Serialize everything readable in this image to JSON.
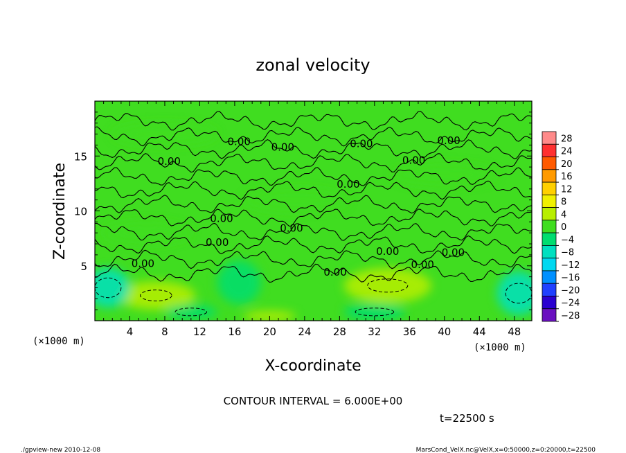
{
  "chart_data": {
    "type": "heatmap",
    "title": "zonal velocity",
    "xlabel": "X-coordinate",
    "ylabel": "Z-coordinate",
    "x_unit_label": "(×1000 m)",
    "y_unit_label": "(×1000 m)",
    "xlim": [
      0,
      50
    ],
    "ylim": [
      0,
      20
    ],
    "x_ticks": [
      4,
      8,
      12,
      16,
      20,
      24,
      28,
      32,
      36,
      40,
      44,
      48
    ],
    "y_ticks": [
      5,
      10,
      15
    ],
    "colorbar": {
      "levels": [
        28,
        24,
        20,
        16,
        12,
        8,
        4,
        0,
        -4,
        -8,
        -12,
        -16,
        -20,
        -24,
        -28
      ],
      "labels": [
        "28",
        "24",
        "20",
        "16",
        "12",
        "8",
        "4",
        "0",
        "−4",
        "−8",
        "−12",
        "−16",
        "−20",
        "−24",
        "−28"
      ],
      "colors": [
        "#ff8a8a",
        "#ff3030",
        "#ff5a00",
        "#ff9a00",
        "#ffd000",
        "#f0f000",
        "#b8ee00",
        "#40dd20",
        "#00dd70",
        "#00e0c0",
        "#00d8f0",
        "#0090ff",
        "#2040ff",
        "#2a00d0",
        "#6a10c0"
      ]
    },
    "contour_interval_text": "CONTOUR INTERVAL = 6.000E+00",
    "contour_labels": [
      {
        "text": "0.00",
        "x": 16.5,
        "z": 16.0
      },
      {
        "text": "0.00",
        "x": 21.5,
        "z": 15.5
      },
      {
        "text": "0.00",
        "x": 8.5,
        "z": 14.2
      },
      {
        "text": "0.00",
        "x": 30.5,
        "z": 15.8
      },
      {
        "text": "0.00",
        "x": 40.5,
        "z": 16.1
      },
      {
        "text": "0.00",
        "x": 36.5,
        "z": 14.3
      },
      {
        "text": "0.00",
        "x": 29.0,
        "z": 12.1
      },
      {
        "text": "0.00",
        "x": 14.5,
        "z": 9.0
      },
      {
        "text": "0.00",
        "x": 22.5,
        "z": 8.1
      },
      {
        "text": "0.00",
        "x": 14.0,
        "z": 6.8
      },
      {
        "text": "0.00",
        "x": 5.5,
        "z": 4.9
      },
      {
        "text": "0.00",
        "x": 33.5,
        "z": 6.0
      },
      {
        "text": "0.00",
        "x": 41.0,
        "z": 5.9
      },
      {
        "text": "0.00",
        "x": 37.5,
        "z": 4.8
      },
      {
        "text": "0.00",
        "x": 27.5,
        "z": 4.1
      }
    ],
    "field_blobs": [
      {
        "x": 7.0,
        "z": 2.3,
        "rx": 4.5,
        "rz": 1.3,
        "value": 5
      },
      {
        "x": 33.5,
        "z": 3.2,
        "rx": 5.0,
        "rz": 1.6,
        "value": 5
      },
      {
        "x": 1.5,
        "z": 3.0,
        "rx": 2.5,
        "rz": 1.8,
        "value": -5
      },
      {
        "x": 16.5,
        "z": 3.5,
        "rx": 2.5,
        "rz": 2.0,
        "value": -3
      },
      {
        "x": 48.5,
        "z": 2.5,
        "rx": 2.5,
        "rz": 2.0,
        "value": -5
      },
      {
        "x": 11.0,
        "z": 0.8,
        "rx": 3.0,
        "rz": 0.7,
        "value": -3
      },
      {
        "x": 32.0,
        "z": 0.8,
        "rx": 3.5,
        "rz": 0.8,
        "value": -3
      },
      {
        "x": 20.0,
        "z": 0.4,
        "rx": 3.0,
        "rz": 0.5,
        "value": 4
      },
      {
        "x": 8.0,
        "z": 17.0,
        "rx": 6.0,
        "rz": 1.0,
        "value": 3
      },
      {
        "x": 40.0,
        "z": 13.3,
        "rx": 6.0,
        "rz": 1.0,
        "value": 3
      },
      {
        "x": 6.0,
        "z": 8.0,
        "rx": 5.0,
        "rz": 1.0,
        "value": 3
      },
      {
        "x": 23.0,
        "z": 11.0,
        "rx": 6.0,
        "rz": 1.0,
        "value": 2
      }
    ]
  },
  "footer": {
    "time_text": "t=22500 s",
    "left_note": "./gpview-new   2010-12-08",
    "right_note": "MarsCond_VelX.nc@VelX,x=0:50000,z=0:20000,t=22500"
  }
}
